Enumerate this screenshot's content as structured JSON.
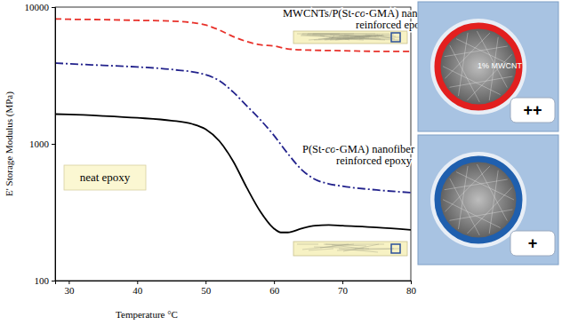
{
  "chart_data": {
    "type": "line",
    "x_label": "Temperature °C",
    "y_label": "E' Storage Modulus (MPa)",
    "log": "y",
    "grid": false,
    "xlim": [
      28,
      80
    ],
    "ylim": [
      100,
      10000
    ],
    "xticks": [
      30,
      40,
      50,
      60,
      70,
      80
    ],
    "yticks": [
      100,
      1000,
      10000
    ],
    "series": [
      {
        "name": "MWCNTs/P(St-co-GMA) nanofiber reinforced epoxy",
        "color": "#e8312a",
        "line_style": "dashed",
        "x": [
          28,
          30,
          35,
          40,
          45,
          48,
          50,
          52,
          54,
          56,
          58,
          60,
          62,
          65,
          70,
          75,
          80
        ],
        "values": [
          8200,
          8150,
          8100,
          8000,
          7900,
          7700,
          7400,
          6800,
          6100,
          5600,
          5300,
          5200,
          4950,
          4850,
          4800,
          4750,
          4750
        ]
      },
      {
        "name": "P(St-co-GMA) nanofiber reinforced epoxy",
        "color": "#22228c",
        "line_style": "dashdot",
        "x": [
          28,
          30,
          35,
          40,
          45,
          50,
          52,
          54,
          56,
          58,
          60,
          62,
          64,
          66,
          68,
          70,
          75,
          80
        ],
        "values": [
          3900,
          3850,
          3750,
          3650,
          3500,
          3200,
          2900,
          2400,
          1900,
          1500,
          1150,
          850,
          650,
          550,
          510,
          490,
          460,
          440
        ]
      },
      {
        "name": "neat epoxy",
        "color": "#000000",
        "line_style": "solid",
        "x": [
          28,
          30,
          35,
          40,
          45,
          48,
          50,
          52,
          54,
          56,
          58,
          60,
          61,
          62,
          64,
          66,
          68,
          70,
          75,
          80
        ],
        "values": [
          1650,
          1640,
          1600,
          1550,
          1480,
          1400,
          1280,
          1050,
          750,
          480,
          320,
          240,
          225,
          225,
          240,
          252,
          255,
          252,
          245,
          235
        ]
      }
    ],
    "annotations": [
      "1% MWCNT",
      "++",
      "+"
    ]
  }
}
